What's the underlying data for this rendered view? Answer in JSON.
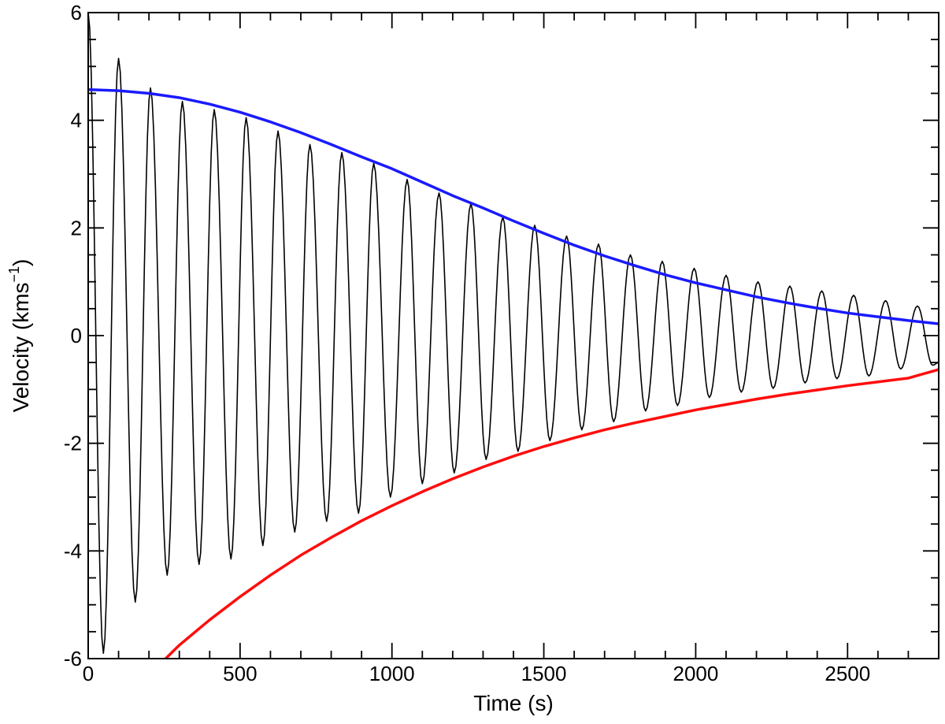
{
  "chart_data": {
    "type": "line",
    "title": "",
    "xlabel": "Time (s)",
    "ylabel": "Velocity (kms",
    "ylabel_superscript": "−1",
    "ylabel_close": ")",
    "xlim": [
      0,
      2800
    ],
    "ylim": [
      -6,
      6
    ],
    "x_ticks": [
      0,
      500,
      1000,
      1500,
      2000,
      2500
    ],
    "x_tick_labels": [
      "0",
      "500",
      "1000",
      "1500",
      "2000",
      "2500"
    ],
    "y_ticks": [
      -6,
      -4,
      -2,
      0,
      2,
      4,
      6
    ],
    "y_tick_labels": [
      "-6",
      "-4",
      "-2",
      "0",
      "2",
      "4",
      "6"
    ],
    "grid": false,
    "legend": "none",
    "series": [
      {
        "color": "#000000",
        "description": "damped oscillation, period ~105 s",
        "x": [
          0,
          50,
          100,
          155,
          205,
          260,
          310,
          365,
          415,
          470,
          520,
          575,
          625,
          680,
          730,
          785,
          835,
          890,
          940,
          995,
          1050,
          1100,
          1155,
          1205,
          1260,
          1310,
          1365,
          1415,
          1470,
          1520,
          1575,
          1625,
          1680,
          1730,
          1785,
          1835,
          1890,
          1940,
          1995,
          2045,
          2100,
          2150,
          2205,
          2255,
          2310,
          2360,
          2415,
          2465,
          2520,
          2570,
          2625,
          2675,
          2730,
          2780,
          2800
        ],
        "y": [
          6.0,
          -5.9,
          5.15,
          -4.95,
          4.6,
          -4.45,
          4.35,
          -4.25,
          4.2,
          -4.15,
          4.05,
          -3.9,
          3.8,
          -3.65,
          3.55,
          -3.45,
          3.4,
          -3.3,
          3.2,
          -3.0,
          2.9,
          -2.75,
          2.65,
          -2.55,
          2.45,
          -2.3,
          2.2,
          -2.15,
          2.05,
          -1.95,
          1.85,
          -1.75,
          1.7,
          -1.6,
          1.5,
          -1.4,
          1.38,
          -1.3,
          1.25,
          -1.15,
          1.12,
          -1.05,
          1.0,
          -0.98,
          0.92,
          -0.88,
          0.83,
          -0.8,
          0.75,
          -0.75,
          0.65,
          -0.62,
          0.55,
          -0.55,
          -0.5
        ]
      },
      {
        "color": "#1a1aff",
        "description": "upper envelope",
        "x": [
          0,
          100,
          200,
          300,
          400,
          500,
          600,
          700,
          800,
          900,
          1000,
          1100,
          1200,
          1300,
          1400,
          1500,
          1600,
          1700,
          1800,
          1900,
          2000,
          2100,
          2200,
          2300,
          2400,
          2500,
          2600,
          2700,
          2800
        ],
        "y": [
          4.57,
          4.55,
          4.5,
          4.42,
          4.3,
          4.15,
          3.97,
          3.77,
          3.55,
          3.32,
          3.1,
          2.85,
          2.6,
          2.37,
          2.13,
          1.9,
          1.68,
          1.48,
          1.3,
          1.13,
          0.98,
          0.85,
          0.72,
          0.61,
          0.51,
          0.42,
          0.35,
          0.28,
          0.22
        ]
      },
      {
        "color": "#ff0d0d",
        "description": "lower envelope",
        "x": [
          255,
          300,
          400,
          500,
          600,
          700,
          800,
          900,
          1000,
          1100,
          1200,
          1300,
          1400,
          1500,
          1600,
          1700,
          1800,
          1900,
          2000,
          2100,
          2200,
          2300,
          2400,
          2500,
          2600,
          2700,
          2800
        ],
        "y": [
          -6.0,
          -5.75,
          -5.28,
          -4.85,
          -4.45,
          -4.08,
          -3.75,
          -3.44,
          -3.16,
          -2.9,
          -2.66,
          -2.44,
          -2.24,
          -2.06,
          -1.9,
          -1.75,
          -1.62,
          -1.5,
          -1.38,
          -1.28,
          -1.18,
          -1.09,
          -1.01,
          -0.93,
          -0.86,
          -0.79,
          -0.63
        ]
      }
    ]
  }
}
